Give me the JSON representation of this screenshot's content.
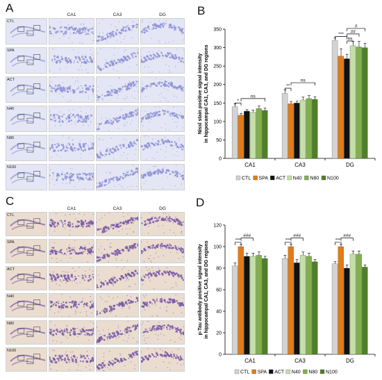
{
  "panels": {
    "a": {
      "letter": "A"
    },
    "b": {
      "letter": "B"
    },
    "c": {
      "letter": "C"
    },
    "d": {
      "letter": "D"
    }
  },
  "micrograph_a": {
    "columns": [
      "CA1",
      "CA3",
      "DG"
    ],
    "rows": [
      "CTL",
      "SPA",
      "ACT",
      "N40",
      "N80",
      "N100"
    ],
    "stain_color": "#8f93d6",
    "background_color": "#e4e6f5"
  },
  "micrograph_c": {
    "columns": [
      "CA1",
      "CA3",
      "DG"
    ],
    "rows": [
      "CTL",
      "SPA",
      "ACT",
      "N40",
      "N80",
      "N100"
    ],
    "stain_color": "#7a5aa8",
    "background_color": "#eadccf"
  },
  "legend": {
    "items": [
      {
        "label": "CTL",
        "color": "#d3d3d3"
      },
      {
        "label": "SPA",
        "color": "#e07b1a"
      },
      {
        "label": "ACT",
        "color": "#111111"
      },
      {
        "label": "N40",
        "color": "#c5dfa8"
      },
      {
        "label": "N80",
        "color": "#7fb04c"
      },
      {
        "label": "N100",
        "color": "#4f7f27"
      }
    ]
  },
  "chart_data": [
    {
      "type": "bar",
      "panel": "B",
      "ylabel": "Nissl stain positive signal intensity in hippocampal CA1, CA3, and DG regions",
      "xlabel": "",
      "ylim": [
        0,
        350
      ],
      "yticks": [
        0,
        50,
        100,
        150,
        200,
        250,
        300,
        350
      ],
      "categories": [
        "CA1",
        "CA3",
        "DG"
      ],
      "series": [
        {
          "name": "CTL",
          "values": [
            140,
            176,
            320
          ],
          "errors": [
            8,
            10,
            6
          ]
        },
        {
          "name": "SPA",
          "values": [
            117,
            148,
            277
          ],
          "errors": [
            5,
            6,
            20
          ]
        },
        {
          "name": "ACT",
          "values": [
            128,
            150,
            270
          ],
          "errors": [
            4,
            5,
            12
          ]
        },
        {
          "name": "N40",
          "values": [
            125,
            158,
            305
          ],
          "errors": [
            6,
            8,
            12
          ]
        },
        {
          "name": "N80",
          "values": [
            135,
            162,
            302
          ],
          "errors": [
            7,
            8,
            15
          ]
        },
        {
          "name": "N100",
          "values": [
            130,
            160,
            300
          ],
          "errors": [
            6,
            7,
            12
          ]
        }
      ],
      "annotations": [
        {
          "group": 0,
          "from": 0,
          "to": 1,
          "text": "*",
          "level": 150
        },
        {
          "group": 0,
          "from": 1,
          "to": 5,
          "text": "ns",
          "level": 162
        },
        {
          "group": 1,
          "from": 0,
          "to": 1,
          "text": "**",
          "level": 190
        },
        {
          "group": 1,
          "from": 1,
          "to": 5,
          "text": "ns",
          "level": 205
        },
        {
          "group": 2,
          "from": 0,
          "to": 2,
          "text": "***",
          "level": 330
        },
        {
          "group": 2,
          "from": 2,
          "to": 3,
          "text": "ns",
          "level": 318
        },
        {
          "group": 2,
          "from": 2,
          "to": 4,
          "text": "##",
          "level": 337
        },
        {
          "group": 2,
          "from": 2,
          "to": 5,
          "text": "#",
          "level": 352
        }
      ]
    },
    {
      "type": "bar",
      "panel": "D",
      "ylabel": "p-Tau antibody positive signal intensity in hippocampal CA1, CA3, and DG regions",
      "xlabel": "",
      "ylim": [
        0,
        120
      ],
      "yticks": [
        0,
        20,
        40,
        60,
        80,
        100,
        120
      ],
      "categories": [
        "CA1",
        "CA3",
        "DG"
      ],
      "series": [
        {
          "name": "CTL",
          "values": [
            82,
            89,
            84
          ],
          "errors": [
            3,
            3,
            2
          ]
        },
        {
          "name": "SPA",
          "values": [
            100,
            100,
            100
          ],
          "errors": [
            2,
            2,
            2
          ]
        },
        {
          "name": "ACT",
          "values": [
            91,
            85,
            80
          ],
          "errors": [
            3,
            3,
            3
          ]
        },
        {
          "name": "N40",
          "values": [
            91,
            92,
            93
          ],
          "errors": [
            3,
            3,
            3
          ]
        },
        {
          "name": "N80",
          "values": [
            92,
            91,
            93
          ],
          "errors": [
            3,
            3,
            3
          ]
        },
        {
          "name": "N100",
          "values": [
            89,
            86,
            81
          ],
          "errors": [
            2,
            2,
            2
          ]
        }
      ],
      "annotations": [
        {
          "group": 0,
          "from": 0,
          "to": 1,
          "text": "***",
          "level": 104
        },
        {
          "group": 0,
          "from": 1,
          "to": 3,
          "text": "###",
          "level": 108
        },
        {
          "group": 1,
          "from": 0,
          "to": 1,
          "text": "***",
          "level": 104
        },
        {
          "group": 1,
          "from": 1,
          "to": 3,
          "text": "###",
          "level": 108
        },
        {
          "group": 2,
          "from": 0,
          "to": 1,
          "text": "***",
          "level": 104
        },
        {
          "group": 2,
          "from": 1,
          "to": 3,
          "text": "###",
          "level": 108
        }
      ]
    }
  ]
}
